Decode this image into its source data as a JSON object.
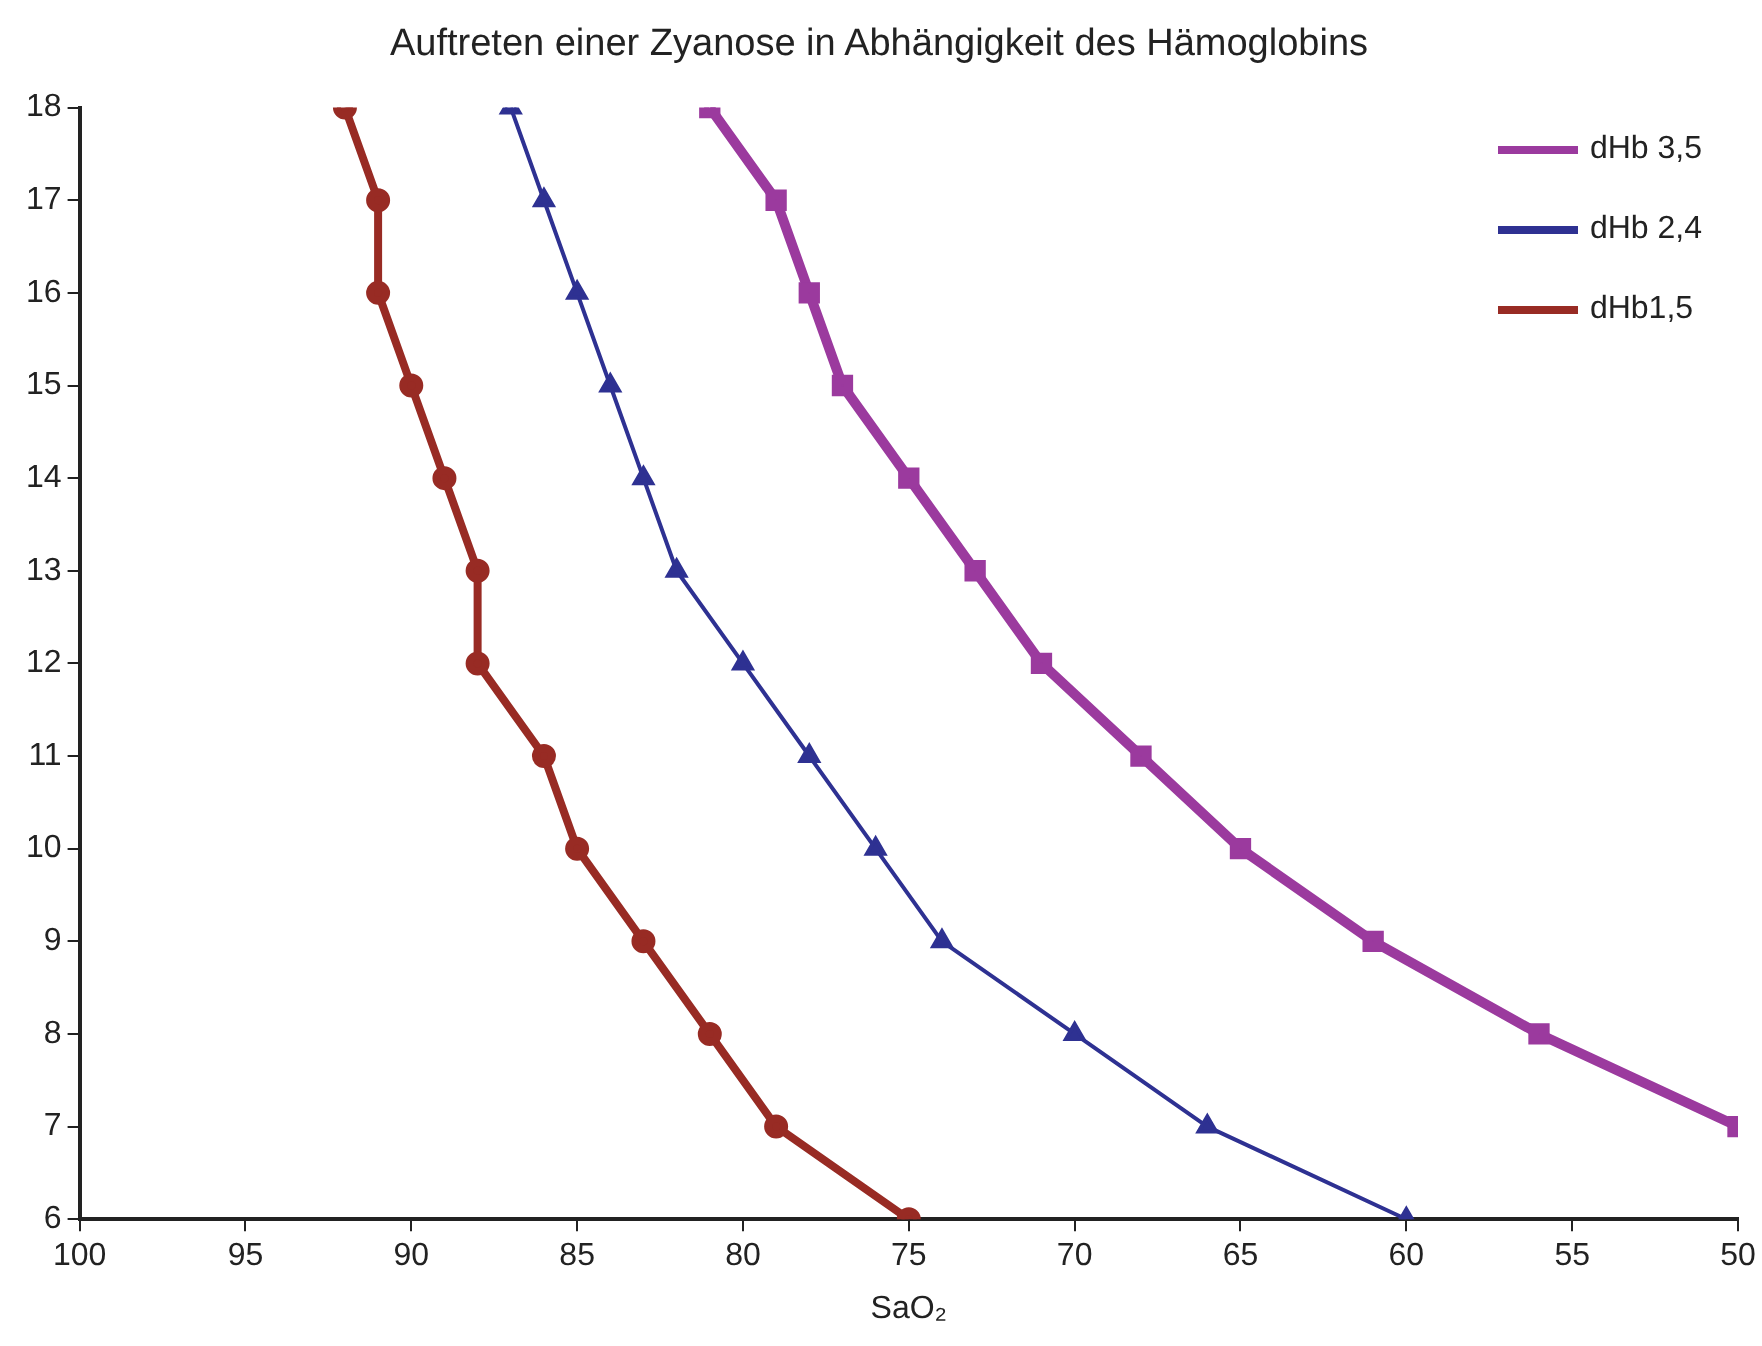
{
  "chart_data": {
    "type": "line",
    "title": "Auftreten einer Zyanose in Abhängigkeit des Hämoglobins",
    "xlabel": "SaO₂",
    "xlim": [
      100,
      50
    ],
    "xticks": [
      100,
      95,
      90,
      85,
      80,
      75,
      70,
      65,
      60,
      55,
      50
    ],
    "ylim": [
      6,
      18
    ],
    "yticks": [
      6,
      7,
      8,
      9,
      10,
      11,
      12,
      13,
      14,
      15,
      16,
      17,
      18
    ],
    "grid": false,
    "legend": "top right",
    "line_style": "solid",
    "series": [
      {
        "name": "dHb 3,5",
        "color": "#9b3a9e",
        "marker": "square",
        "x": [
          81,
          79,
          78,
          77,
          75,
          73,
          71,
          68,
          65,
          61,
          56,
          50
        ],
        "values": [
          18,
          17,
          16,
          15,
          14,
          13,
          12,
          11,
          10,
          9,
          8,
          7
        ]
      },
      {
        "name": "dHb 2,4",
        "color": "#2e3192",
        "marker": "triangle",
        "x": [
          87,
          86,
          85,
          84,
          83,
          82,
          80,
          78,
          76,
          74,
          70,
          66,
          60
        ],
        "values": [
          18,
          17,
          16,
          15,
          14,
          13,
          12,
          11,
          10,
          9,
          8,
          7,
          6
        ]
      },
      {
        "name": "dHb1,5",
        "color": "#982b24",
        "marker": "circle",
        "x": [
          92,
          91,
          91,
          90,
          89,
          88,
          88,
          86,
          85,
          83,
          81,
          79,
          75
        ],
        "values": [
          18,
          17,
          16,
          15,
          14,
          13,
          12,
          11,
          10,
          9,
          8,
          7,
          6
        ]
      }
    ]
  }
}
